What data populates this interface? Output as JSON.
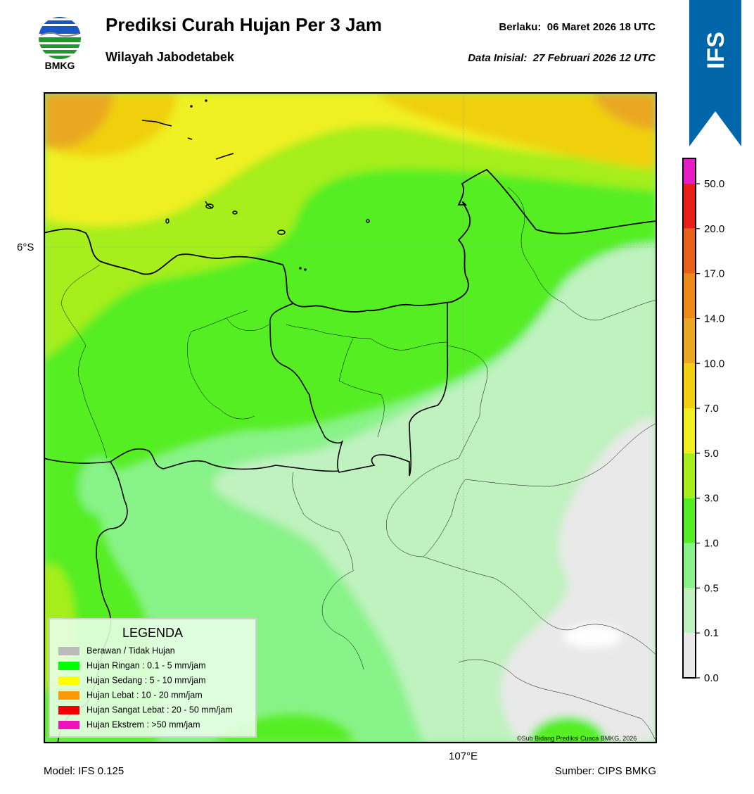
{
  "header": {
    "logo_text": "BMKG",
    "title": "Prediksi Curah Hujan Per 3 Jam",
    "subtitle": "Wilayah Jabodetabek",
    "valid_label": "Berlaku:",
    "valid_time": "06 Maret 2026 18 UTC",
    "init_label": "Data Inisial:",
    "init_time": "27 Februari 2026 12 UTC"
  },
  "badge": {
    "text": "IFS",
    "color": "#0066aa"
  },
  "map": {
    "lat_label": "6°S",
    "lon_label": "107°E"
  },
  "legend": {
    "title": "LEGENDA",
    "items": [
      {
        "label": "Berawan / Tidak Hujan",
        "color": "#bbbbbb"
      },
      {
        "label": "Hujan Ringan : 0.1 - 5 mm/jam",
        "color": "#00ff00"
      },
      {
        "label": "Hujan Sedang : 5 - 10 mm/jam",
        "color": "#ffff00"
      },
      {
        "label": "Hujan Lebat : 10 - 20 mm/jam",
        "color": "#ff9900"
      },
      {
        "label": "Hujan Sangat Lebat : 20 - 50 mm/jam",
        "color": "#ee0000"
      },
      {
        "label": "Hujan Ekstrem : >50 mm/jam",
        "color": "#ee11bb"
      }
    ]
  },
  "colorbar": {
    "ticks": [
      "0.0",
      "0.1",
      "0.5",
      "1.0",
      "3.0",
      "5.0",
      "7.0",
      "10.0",
      "14.0",
      "17.0",
      "20.0",
      "50.0"
    ],
    "colors": [
      "#e9e9e9",
      "#bff2bf",
      "#88f388",
      "#55ee22",
      "#a6ee1e",
      "#f0f020",
      "#f0d010",
      "#eaa820",
      "#ec8a1a",
      "#e96018",
      "#ea2018",
      "#e61ec6"
    ]
  },
  "footer": {
    "model": "Model: IFS 0.125",
    "source": "Sumber: CIPS BMKG",
    "copyright": "©Sub Bidang Prediksi Cuaca BMKG, 2026"
  }
}
